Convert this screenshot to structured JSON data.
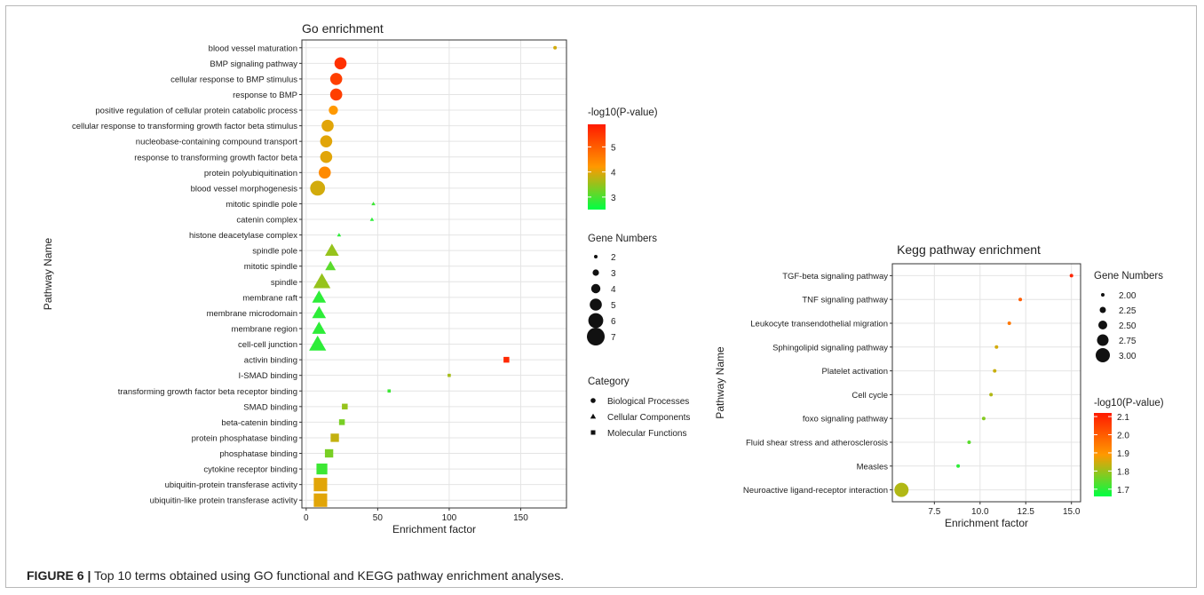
{
  "caption": {
    "label": "FIGURE 6 |",
    "text": " Top 10 terms obtained using GO functional and KEGG pathway enrichment analyses."
  },
  "colors": {
    "low": "#00ff44",
    "mid": "#ff9900",
    "high": "#ff1a00"
  },
  "chart_data": [
    {
      "type": "scatter",
      "title": "Go enrichment",
      "xlabel": "Enrichment factor",
      "ylabel": "Pathway Name",
      "xlim": [
        -3,
        182
      ],
      "xticks": [
        0,
        50,
        100,
        150
      ],
      "grid": true,
      "color_legend": {
        "title": "-log10(P-value)",
        "ticks": [
          3,
          4,
          5
        ],
        "range": [
          2.5,
          5.9
        ]
      },
      "size_legend": {
        "title": "Gene Numbers",
        "ticks": [
          "2",
          "3",
          "4",
          "5",
          "6",
          "7"
        ]
      },
      "category_legend": {
        "title": "Category",
        "items": [
          {
            "label": "Biological Processes",
            "shape": "circle"
          },
          {
            "label": "Cellular Components",
            "shape": "triangle"
          },
          {
            "label": "Molecular Functions",
            "shape": "square"
          }
        ]
      },
      "points": [
        {
          "term": "blood vessel maturation",
          "x": 174,
          "logp": 3.9,
          "genes": 2,
          "shape": "circle"
        },
        {
          "term": "BMP signaling pathway",
          "x": 24,
          "logp": 5.6,
          "genes": 5,
          "shape": "circle"
        },
        {
          "term": "cellular response to BMP stimulus",
          "x": 21,
          "logp": 5.4,
          "genes": 5,
          "shape": "circle"
        },
        {
          "term": "response to BMP",
          "x": 21,
          "logp": 5.4,
          "genes": 5,
          "shape": "circle"
        },
        {
          "term": "positive regulation of cellular protein catabolic process",
          "x": 19,
          "logp": 4.2,
          "genes": 4,
          "shape": "circle"
        },
        {
          "term": "cellular response to transforming growth factor beta stimulus",
          "x": 15,
          "logp": 4.0,
          "genes": 5,
          "shape": "circle"
        },
        {
          "term": "nucleobase-containing compound transport",
          "x": 14,
          "logp": 4.0,
          "genes": 5,
          "shape": "circle"
        },
        {
          "term": "response to transforming growth factor beta",
          "x": 14,
          "logp": 4.0,
          "genes": 5,
          "shape": "circle"
        },
        {
          "term": "protein polyubiquitination",
          "x": 13,
          "logp": 4.4,
          "genes": 5,
          "shape": "circle"
        },
        {
          "term": "blood vessel morphogenesis",
          "x": 8,
          "logp": 3.9,
          "genes": 6,
          "shape": "circle"
        },
        {
          "term": "mitotic spindle pole",
          "x": 47,
          "logp": 2.9,
          "genes": 2,
          "shape": "triangle"
        },
        {
          "term": "catenin complex",
          "x": 46,
          "logp": 2.8,
          "genes": 2,
          "shape": "triangle"
        },
        {
          "term": "histone deacetylase complex",
          "x": 23,
          "logp": 2.8,
          "genes": 2,
          "shape": "triangle"
        },
        {
          "term": "spindle pole",
          "x": 18,
          "logp": 3.5,
          "genes": 5,
          "shape": "triangle"
        },
        {
          "term": "mitotic spindle",
          "x": 17,
          "logp": 3.1,
          "genes": 4,
          "shape": "triangle"
        },
        {
          "term": "spindle",
          "x": 11,
          "logp": 3.5,
          "genes": 6,
          "shape": "triangle"
        },
        {
          "term": "membrane raft",
          "x": 9,
          "logp": 2.8,
          "genes": 5,
          "shape": "triangle"
        },
        {
          "term": "membrane microdomain",
          "x": 9,
          "logp": 2.8,
          "genes": 5,
          "shape": "triangle"
        },
        {
          "term": "membrane region",
          "x": 9,
          "logp": 2.8,
          "genes": 5,
          "shape": "triangle"
        },
        {
          "term": "cell-cell junction",
          "x": 8,
          "logp": 2.8,
          "genes": 6,
          "shape": "triangle"
        },
        {
          "term": "activin binding",
          "x": 140,
          "logp": 5.7,
          "genes": 3,
          "shape": "square"
        },
        {
          "term": "I-SMAD binding",
          "x": 100,
          "logp": 3.6,
          "genes": 2,
          "shape": "square"
        },
        {
          "term": "transforming growth factor beta receptor binding",
          "x": 58,
          "logp": 2.9,
          "genes": 2,
          "shape": "square"
        },
        {
          "term": "SMAD binding",
          "x": 27,
          "logp": 3.5,
          "genes": 3,
          "shape": "square"
        },
        {
          "term": "beta-catenin binding",
          "x": 25,
          "logp": 3.3,
          "genes": 3,
          "shape": "square"
        },
        {
          "term": "protein phosphatase binding",
          "x": 20,
          "logp": 3.8,
          "genes": 4,
          "shape": "square"
        },
        {
          "term": "phosphatase binding",
          "x": 16,
          "logp": 3.3,
          "genes": 4,
          "shape": "square"
        },
        {
          "term": "cytokine receptor binding",
          "x": 11,
          "logp": 2.9,
          "genes": 5,
          "shape": "square"
        },
        {
          "term": "ubiquitin-protein transferase activity",
          "x": 10,
          "logp": 4.0,
          "genes": 6,
          "shape": "square"
        },
        {
          "term": "ubiquitin-like protein transferase activity",
          "x": 10,
          "logp": 4.0,
          "genes": 6,
          "shape": "square"
        }
      ]
    },
    {
      "type": "scatter",
      "title": "Kegg pathway enrichment",
      "xlabel": "Enrichment factor",
      "ylabel": "Pathway Name",
      "xlim": [
        5.2,
        15.5
      ],
      "xticks": [
        7.5,
        10.0,
        12.5,
        15.0
      ],
      "xtick_labels": [
        "7.5",
        "10.0",
        "12.5",
        "15.0"
      ],
      "grid": true,
      "size_legend": {
        "title": "Gene Numbers",
        "ticks": [
          "2.00",
          "2.25",
          "2.50",
          "2.75",
          "3.00"
        ]
      },
      "color_legend": {
        "title": "-log10(P-value)",
        "ticks": [
          1.7,
          1.8,
          1.9,
          2.0,
          2.1
        ],
        "tick_labels": [
          "1.7",
          "1.8",
          "1.9",
          "2.0",
          "2.1"
        ],
        "range": [
          1.66,
          2.12
        ]
      },
      "points": [
        {
          "term": "TGF-beta signaling pathway",
          "x": 15.0,
          "logp": 2.1,
          "genes": 2
        },
        {
          "term": "TNF signaling pathway",
          "x": 12.2,
          "logp": 2.0,
          "genes": 2
        },
        {
          "term": "Leukocyte transendothelial migration",
          "x": 11.6,
          "logp": 1.95,
          "genes": 2
        },
        {
          "term": "Sphingolipid signaling pathway",
          "x": 10.9,
          "logp": 1.85,
          "genes": 2
        },
        {
          "term": "Platelet activation",
          "x": 10.8,
          "logp": 1.84,
          "genes": 2
        },
        {
          "term": "Cell cycle",
          "x": 10.6,
          "logp": 1.82,
          "genes": 2
        },
        {
          "term": "foxo signaling pathway",
          "x": 10.2,
          "logp": 1.78,
          "genes": 2
        },
        {
          "term": "Fluid shear stress and atherosclerosis",
          "x": 9.4,
          "logp": 1.74,
          "genes": 2
        },
        {
          "term": "Measles",
          "x": 8.8,
          "logp": 1.7,
          "genes": 2
        },
        {
          "term": "Neuroactive ligand-receptor interaction",
          "x": 5.7,
          "logp": 1.82,
          "genes": 3
        }
      ]
    }
  ]
}
